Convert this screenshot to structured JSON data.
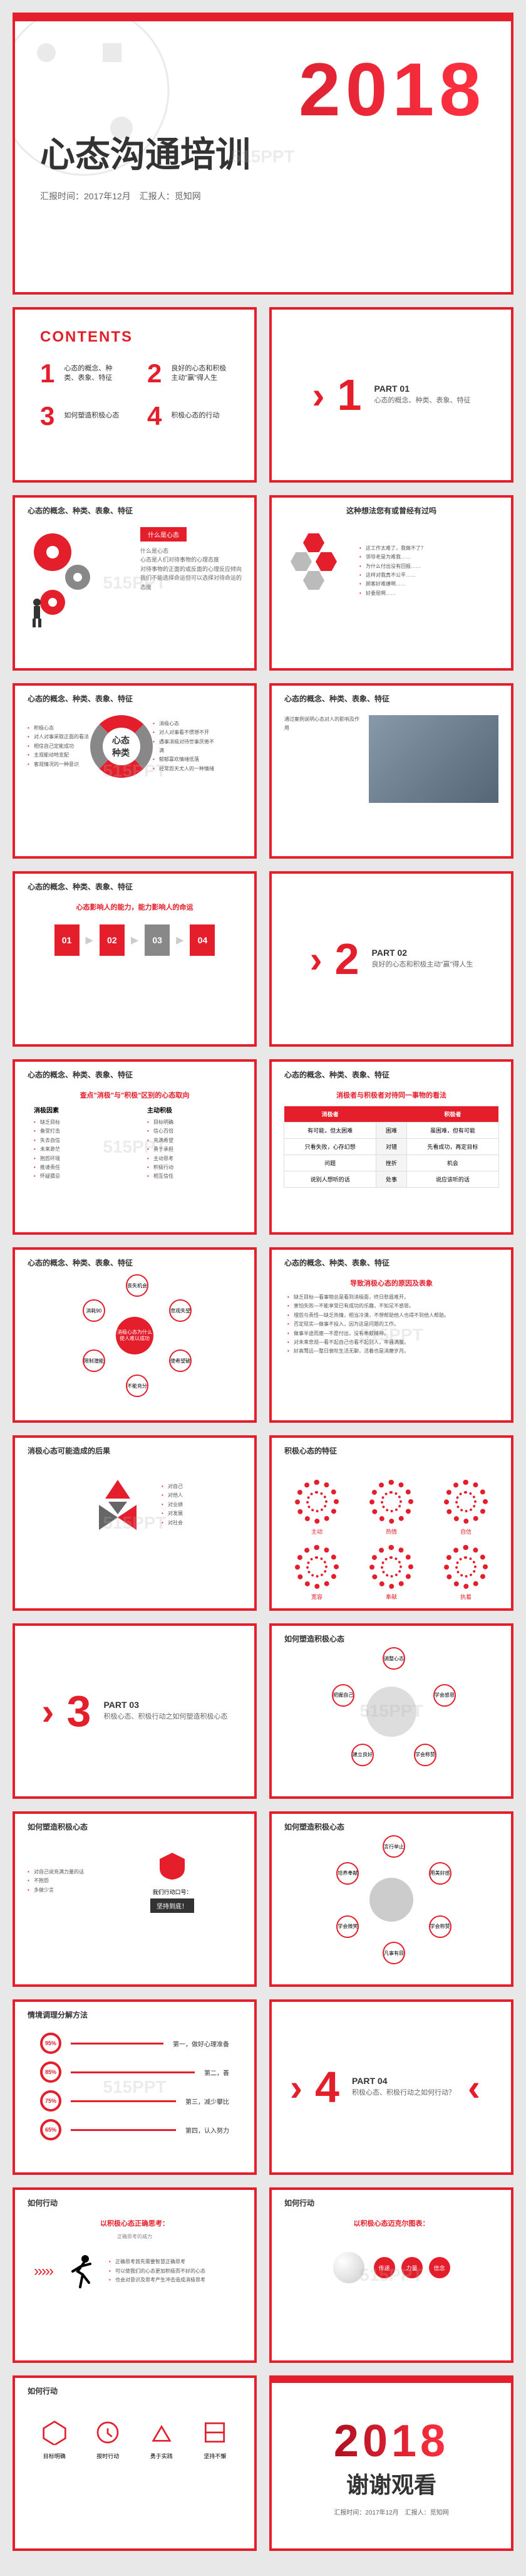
{
  "colors": {
    "primary": "#e41e2b",
    "gray": "#888888",
    "text": "#333333",
    "light_text": "#666666",
    "bg": "#ffffff"
  },
  "watermark": "515PPT",
  "title_slide": {
    "year": "2018",
    "title": "心态沟通培训",
    "subtitle": "汇报时间：2017年12月　汇报人：觅知网"
  },
  "contents": {
    "heading": "CONTENTS",
    "items": [
      {
        "num": "1",
        "text": "心态的概念、种类、表象、特征"
      },
      {
        "num": "2",
        "text": "良好的心态和积极主动\"赢\"得人生"
      },
      {
        "num": "3",
        "text": "如何塑造积极心态"
      },
      {
        "num": "4",
        "text": "积极心态的行动"
      }
    ]
  },
  "parts": [
    {
      "num": "1",
      "label": "PART 01",
      "desc": "心态的概念、种类、表象、特征"
    },
    {
      "num": "2",
      "label": "PART 02",
      "desc": "良好的心态和积极主动\"赢\"得人生"
    },
    {
      "num": "3",
      "label": "PART 03",
      "desc": "积极心态、积极行动之如何塑造积极心态"
    },
    {
      "num": "4",
      "label": "PART 04",
      "desc": "积极心态、积极行动之如何行动？"
    }
  ],
  "slide_headers": {
    "concept": "心态的概念、种类、表象、特征",
    "result": "消极心态可能造成的后果",
    "feature": "积极心态的特征",
    "shape": "如何塑造积极心态",
    "method": "情境调理分解方法",
    "action": "如何行动"
  },
  "s3": {
    "label": "什么是心态",
    "body": "什么是心态\n心态是人们对待事物的心理态度\n对待事物的正面的或反面的心理反应倾向\n我们不能选择命运但可以选择对待命运的态度"
  },
  "s4": {
    "title": "这种想法您有或曾经有过吗",
    "items": [
      "这工作太难了，我做不了？",
      "领导老是为难我……",
      "为什么付出没有回报……",
      "这样对我真不公平……",
      "顾客好难缠啊……",
      "好委屈啊……"
    ]
  },
  "s5": {
    "center": "心态种类",
    "left": [
      "积极心态",
      "对人对事采取正面的看法",
      "相信自己定能成功",
      "主观能动地支配",
      "客观情况的一种意识"
    ],
    "right": [
      "消极心态",
      "对人对事看不惯想不开",
      "遇事消极对待世事厌倦不满",
      "郁郁寡欢情绪低落",
      "经常怨天尤人的一种情绪"
    ]
  },
  "s6": {
    "title": "心态影响人的能力，能力影响人的命运",
    "steps": [
      "01",
      "02",
      "03",
      "04"
    ]
  },
  "s8": {
    "title": "查点\"消极\"与\"积极\"区别的心态取向",
    "left_h": "消极因素",
    "right_h": "主动积极",
    "cols": [
      [
        "缺乏目标",
        "备受打击",
        "失去自信",
        "未来渺茫",
        "抱怨环境",
        "推诿责任",
        "怀疑猜忌"
      ],
      [
        "目标明确",
        "信心百倍",
        "充满希望",
        "勇于承担",
        "主动思考",
        "积极行动",
        "相互信任"
      ]
    ]
  },
  "s9": {
    "title": "消极者与积极者对待同一事物的看法",
    "table": {
      "head": [
        "消极者",
        "",
        "积极者"
      ],
      "rows": [
        [
          "有可能，但太困难",
          "困难",
          "虽困难，但有可能"
        ],
        [
          "只看失败，心存幻想",
          "对错",
          "先看成功，再定目标"
        ],
        [
          "问题",
          "挫折",
          "机会"
        ],
        [
          "说别人想听的话",
          "处事",
          "说应该听的话"
        ]
      ]
    }
  },
  "s10": {
    "hub": "消极心态为什么使人难以成功",
    "nodes": [
      "丧失机会",
      "悲观失望",
      "使希望破灭",
      "不能充分发挥潜能",
      "限制潜能发挥",
      "消耗90%精力"
    ]
  },
  "s11": {
    "title": "导致消极心态的原因及表象",
    "lines": [
      "缺乏目标—看事物总是看到消极面，终日愁眉难开。",
      "害怕失败—不能享受已有成功的乐趣，不知足不感恩。",
      "埋怨与责怪—缺乏热情，相当冷漠，不想帮助他人也得不到他人帮助。",
      "否定现实—做事不投入，因为这是问题的工作。",
      "做事半途而废—不愿付出，没有奉献精神。",
      "对未来悲观—看不起自己也看不起别人，牢骚满腹。",
      "好高骛远—整日衰叹生活无聊，活着也是消磨岁月。"
    ]
  },
  "s12": {
    "items": [
      "对自己",
      "对他人",
      "对业绩",
      "对发展",
      "对社会"
    ]
  },
  "s13": {
    "items": [
      "主动",
      "热情",
      "自信",
      "宽容",
      "奉献",
      "执着"
    ]
  },
  "s15": {
    "title": "如何塑造积极心态",
    "left": [
      "对自己说充满力量的话",
      "不抱怨",
      "多做少言"
    ],
    "right_label": "我们行动口号：",
    "right": "坚持到底！"
  },
  "s16": {
    "items": [
      "调整心态",
      "学会感恩",
      "学会称赞",
      "建立良好人际",
      "把握自己"
    ]
  },
  "s17": {
    "items": [
      "言行举止保持一流",
      "用美好感觉信心目标影响他人",
      "学会称赞别人",
      "凡事有目标",
      "学会微笑",
      "培养奉献精神"
    ]
  },
  "s18": {
    "rows": [
      {
        "pct": "95%",
        "label": "第一，做好心理准备"
      },
      {
        "pct": "85%",
        "label": "第二，善"
      },
      {
        "pct": "75%",
        "label": "第三，减少攀比"
      },
      {
        "pct": "65%",
        "label": "第四，认入努力"
      }
    ]
  },
  "s20": {
    "title": "以积极心态正确思考：",
    "sub": "正确思考的威力",
    "lines": [
      "正确思考首先需要智慧正确思考",
      "可以使我们的心态更加积极而不好的心态",
      "也会对意识及思考产生冲击造成消极思考"
    ]
  },
  "s21": {
    "title": "以积极心态迈克尔图表：",
    "items": [
      "传递",
      "力量",
      "信念"
    ]
  },
  "s22": {
    "items": [
      "目标明确",
      "按时行动",
      "勇于实践",
      "坚持不懈"
    ]
  },
  "end": {
    "year": "2018",
    "thanks": "谢谢观看",
    "sub": "汇报时间：2017年12月　汇报人：觅知网"
  }
}
